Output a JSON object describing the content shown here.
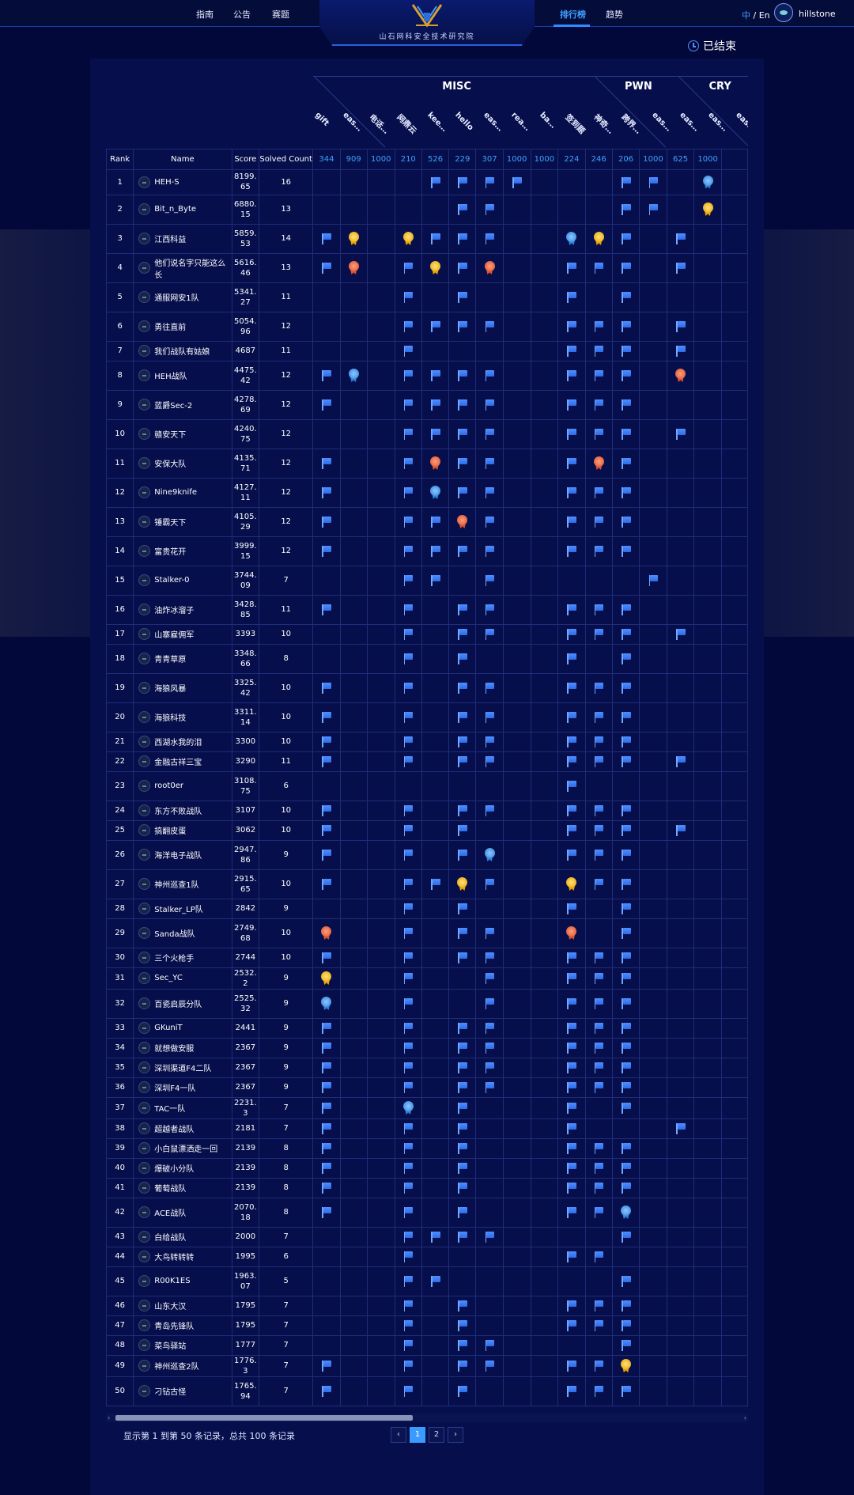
{
  "header": {
    "nav_left": [
      "指南",
      "公告",
      "赛题"
    ],
    "nav_right": [
      "排行榜",
      "趋势"
    ],
    "active_nav": "排行榜",
    "logo_text": "山石网科安全技术研究院",
    "lang_zh": "中",
    "lang_sep": " / ",
    "lang_en": "En",
    "username": "hillstone"
  },
  "status": "已结束",
  "categories": [
    {
      "name": "MISC",
      "span": 10
    },
    {
      "name": "PWN",
      "span": 3
    },
    {
      "name": "CRY",
      "span": 3
    }
  ],
  "challenges": [
    {
      "name": "gift",
      "points": "344"
    },
    {
      "name": "easy...",
      "points": "909"
    },
    {
      "name": "电话...",
      "points": "1000"
    },
    {
      "name": "网鼎云",
      "points": "210"
    },
    {
      "name": "keep...",
      "points": "526"
    },
    {
      "name": "hello",
      "points": "229"
    },
    {
      "name": "easy...",
      "points": "307"
    },
    {
      "name": "realw...",
      "points": "1000"
    },
    {
      "name": "baby...",
      "points": "1000"
    },
    {
      "name": "签到题",
      "points": "224"
    },
    {
      "name": "神奇...",
      "points": "246"
    },
    {
      "name": "跨界...",
      "points": "206"
    },
    {
      "name": "easyf...",
      "points": "1000"
    },
    {
      "name": "easy...",
      "points": "625"
    },
    {
      "name": "easyop",
      "points": "1000"
    },
    {
      "name": "easiest",
      "points": ""
    }
  ],
  "columns": {
    "rank": "Rank",
    "name": "Name",
    "score": "Score",
    "solved": "Solved Count"
  },
  "rows": [
    {
      "rank": "1",
      "name": "HEH-S",
      "score": "8199.65",
      "solved": "16",
      "marks": "....FFFF...FF.2."
    },
    {
      "rank": "2",
      "name": "Bit_n_Byte",
      "score": "6880.15",
      "solved": "13",
      "marks": ".....FF....FF.1."
    },
    {
      "rank": "3",
      "name": "江西科益",
      "score": "5859.53",
      "solved": "14",
      "marks": "F1.1FFF..21F.F.."
    },
    {
      "rank": "4",
      "name": "他们说名字只能这么长",
      "score": "5616.46",
      "solved": "13",
      "marks": "F3.F1F3..FFF.F.."
    },
    {
      "rank": "5",
      "name": "通服网安1队",
      "score": "5341.27",
      "solved": "11",
      "marks": "...F.F...F.F...."
    },
    {
      "rank": "6",
      "name": "勇往直前",
      "score": "5054.96",
      "solved": "12",
      "marks": "...FFFF..FFF.F.."
    },
    {
      "rank": "7",
      "name": "我们战队有姑娘",
      "score": "4687",
      "solved": "11",
      "marks": "...F.....FFF.F.."
    },
    {
      "rank": "8",
      "name": "HEH战队",
      "score": "4475.42",
      "solved": "12",
      "marks": "F2.FFFF..FFF.3.."
    },
    {
      "rank": "9",
      "name": "蓝爵Sec-2",
      "score": "4278.69",
      "solved": "12",
      "marks": "F..FFFF..FFF...."
    },
    {
      "rank": "10",
      "name": "赣安天下",
      "score": "4240.75",
      "solved": "12",
      "marks": "...FFFF..FFF.F.."
    },
    {
      "rank": "11",
      "name": "安保大队",
      "score": "4135.71",
      "solved": "12",
      "marks": "F..F3FF..F3F...."
    },
    {
      "rank": "12",
      "name": "Nine9knife",
      "score": "4127.11",
      "solved": "12",
      "marks": "F..F2FF..FFF...."
    },
    {
      "rank": "13",
      "name": "锤霸天下",
      "score": "4105.29",
      "solved": "12",
      "marks": "F..FF3F..FFF...."
    },
    {
      "rank": "14",
      "name": "富贵花开",
      "score": "3999.15",
      "solved": "12",
      "marks": "F..FFFF..FFF...."
    },
    {
      "rank": "15",
      "name": "Stalker-0",
      "score": "3744.09",
      "solved": "7",
      "marks": "...FF.F.....F..."
    },
    {
      "rank": "16",
      "name": "油炸冰溜子",
      "score": "3428.85",
      "solved": "11",
      "marks": "F..F.FF..FFF...."
    },
    {
      "rank": "17",
      "name": "山寨雇佣军",
      "score": "3393",
      "solved": "10",
      "marks": "...F.FF..FFF.F.."
    },
    {
      "rank": "18",
      "name": "青青草原",
      "score": "3348.66",
      "solved": "8",
      "marks": "...F.F...F.F...."
    },
    {
      "rank": "19",
      "name": "海狼风暴",
      "score": "3325.42",
      "solved": "10",
      "marks": "F..F.FF..FFF...."
    },
    {
      "rank": "20",
      "name": "海狼科技",
      "score": "3311.14",
      "solved": "10",
      "marks": "F..F.FF..FFF...."
    },
    {
      "rank": "21",
      "name": "西湖水我的泪",
      "score": "3300",
      "solved": "10",
      "marks": "F..F.FF..FFF...."
    },
    {
      "rank": "22",
      "name": "金融古祥三宝",
      "score": "3290",
      "solved": "11",
      "marks": "F..F.FF..FFF.F.."
    },
    {
      "rank": "23",
      "name": "root0er",
      "score": "3108.75",
      "solved": "6",
      "marks": ".........F......"
    },
    {
      "rank": "24",
      "name": "东方不败战队",
      "score": "3107",
      "solved": "10",
      "marks": "F..F.FF..FFF...."
    },
    {
      "rank": "25",
      "name": "搞翻皮蛋",
      "score": "3062",
      "solved": "10",
      "marks": "F..F.F...FFF.F.."
    },
    {
      "rank": "26",
      "name": "海洋电子战队",
      "score": "2947.86",
      "solved": "9",
      "marks": "F..F.F2..FFF...."
    },
    {
      "rank": "27",
      "name": "神州巡查1队",
      "score": "2915.65",
      "solved": "10",
      "marks": "F..FF1F..1FF...."
    },
    {
      "rank": "28",
      "name": "Stalker_LP队",
      "score": "2842",
      "solved": "9",
      "marks": "...F.F...F.F...."
    },
    {
      "rank": "29",
      "name": "Sanda战队",
      "score": "2749.68",
      "solved": "10",
      "marks": "3..F.FF..3.F...."
    },
    {
      "rank": "30",
      "name": "三个火枪手",
      "score": "2744",
      "solved": "10",
      "marks": "F..F.FF..FFF...."
    },
    {
      "rank": "31",
      "name": "Sec_YC",
      "score": "2532.2",
      "solved": "9",
      "marks": "1..F..F..FFF...."
    },
    {
      "rank": "32",
      "name": "百瓷启辰分队",
      "score": "2525.32",
      "solved": "9",
      "marks": "2..F..F..FFF...."
    },
    {
      "rank": "33",
      "name": "GKuniT",
      "score": "2441",
      "solved": "9",
      "marks": "F..F.FF..FFF...."
    },
    {
      "rank": "34",
      "name": "就想做安服",
      "score": "2367",
      "solved": "9",
      "marks": "F..F.FF..FFF...."
    },
    {
      "rank": "35",
      "name": "深圳渠道F4二队",
      "score": "2367",
      "solved": "9",
      "marks": "F..F.FF..FFF...."
    },
    {
      "rank": "36",
      "name": "深圳F4一队",
      "score": "2367",
      "solved": "9",
      "marks": "F..F.FF..FFF...."
    },
    {
      "rank": "37",
      "name": "TAC一队",
      "score": "2231.3",
      "solved": "7",
      "marks": "F..2.F...F.F...."
    },
    {
      "rank": "38",
      "name": "超越者战队",
      "score": "2181",
      "solved": "7",
      "marks": "F..F.F...F...F.."
    },
    {
      "rank": "39",
      "name": "小白鼠漂洒走一回",
      "score": "2139",
      "solved": "8",
      "marks": "F..F.F...FFF...."
    },
    {
      "rank": "40",
      "name": "爆破小分队",
      "score": "2139",
      "solved": "8",
      "marks": "F..F.F...FFF...."
    },
    {
      "rank": "41",
      "name": "葡萄战队",
      "score": "2139",
      "solved": "8",
      "marks": "F..F.F...FFF...."
    },
    {
      "rank": "42",
      "name": "ACE战队",
      "score": "2070.18",
      "solved": "8",
      "marks": "F..F.F...FF2...."
    },
    {
      "rank": "43",
      "name": "白给战队",
      "score": "2000",
      "solved": "7",
      "marks": "...FFFF....F...."
    },
    {
      "rank": "44",
      "name": "大鸟转转转",
      "score": "1995",
      "solved": "6",
      "marks": "...F.....FF....."
    },
    {
      "rank": "45",
      "name": "R00K1ES",
      "score": "1963.07",
      "solved": "5",
      "marks": "...FF......F...."
    },
    {
      "rank": "46",
      "name": "山东大汉",
      "score": "1795",
      "solved": "7",
      "marks": "...F.F...FFF...."
    },
    {
      "rank": "47",
      "name": "青岛先锋队",
      "score": "1795",
      "solved": "7",
      "marks": "...F.F...FFF...."
    },
    {
      "rank": "48",
      "name": "菜鸟驿站",
      "score": "1777",
      "solved": "7",
      "marks": "...F.FF....F...."
    },
    {
      "rank": "49",
      "name": "神州巡查2队",
      "score": "1776.3",
      "solved": "7",
      "marks": "F..F.FF..FF1...."
    },
    {
      "rank": "50",
      "name": "刁钻古怪",
      "score": "1765.94",
      "solved": "7",
      "marks": "F..F.F...FFF...."
    }
  ],
  "pagination": {
    "info": "显示第 1 到第 50 条记录，总共 100 条记录",
    "prev": "‹",
    "pages": [
      "1",
      "2"
    ],
    "active": "1",
    "next": "›"
  }
}
